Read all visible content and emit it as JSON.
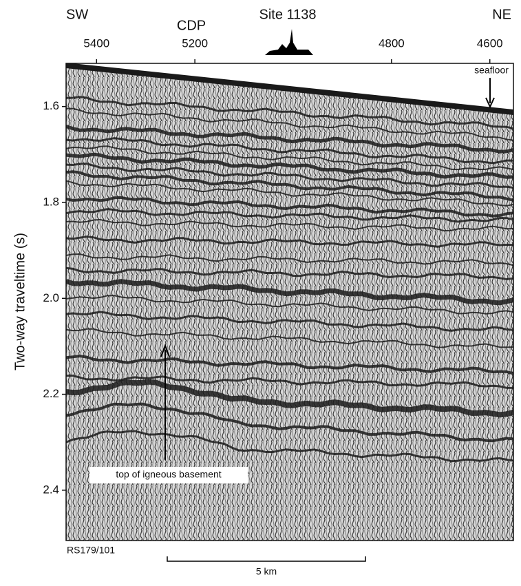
{
  "chart_data": {
    "type": "seismic-profile",
    "title": "Site 1138",
    "left_label": "SW",
    "right_label": "NE",
    "xlabel": "CDP",
    "ylabel": "Two-way traveltime (s)",
    "xlim": [
      5462,
      4552
    ],
    "xticks": [
      5400,
      5200,
      4800,
      4600
    ],
    "ylim": [
      1.51,
      2.505
    ],
    "yticks": [
      1.6,
      1.8,
      {
        "value": 2,
        "label": "2.0"
      },
      2.2,
      2.4
    ],
    "annotations": [
      "seafloor",
      "top of igneous basement"
    ],
    "line_name": "RS179/101",
    "scale_bar": "5 km"
  }
}
